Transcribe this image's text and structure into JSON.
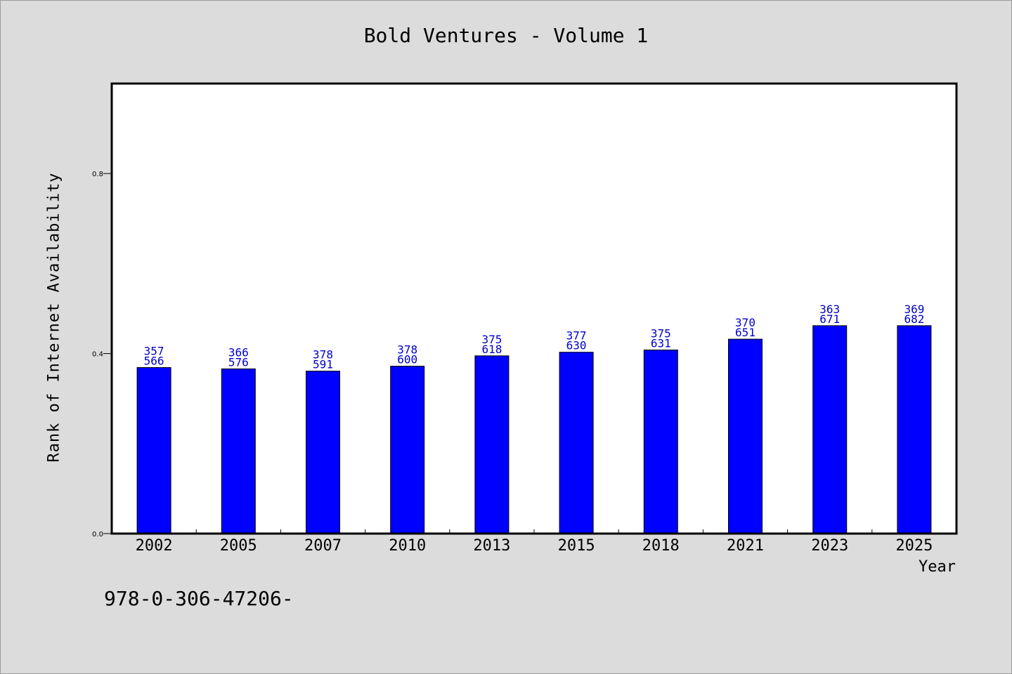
{
  "chart_data": {
    "type": "bar",
    "title": "Bold Ventures - Volume 1",
    "xlabel": "Year",
    "ylabel": "Rank of Internet Availability",
    "categories": [
      "2002",
      "2005",
      "2007",
      "2010",
      "2013",
      "2015",
      "2018",
      "2021",
      "2023",
      "2025"
    ],
    "values": [
      0.369,
      0.366,
      0.361,
      0.372,
      0.395,
      0.403,
      0.408,
      0.432,
      0.462,
      0.462
    ],
    "bar_labels": [
      [
        "357",
        "566"
      ],
      [
        "366",
        "576"
      ],
      [
        "378",
        "591"
      ],
      [
        "378",
        "600"
      ],
      [
        "375",
        "618"
      ],
      [
        "377",
        "630"
      ],
      [
        "375",
        "631"
      ],
      [
        "370",
        "651"
      ],
      [
        "363",
        "671"
      ],
      [
        "369",
        "682"
      ]
    ],
    "yticks": [
      "0.0",
      "0.4",
      "0.8"
    ],
    "ytick_values": [
      0.0,
      0.4,
      0.8
    ],
    "ylim": [
      0.0,
      1.0
    ],
    "grid": false,
    "legend": "none",
    "colors": {
      "bar": "#0000ff",
      "bar_label": "#0000cc",
      "background": "#dcdcdc",
      "plot_bg": "#ffffff"
    }
  },
  "footer": {
    "isbn": "978-0-306-47206-"
  }
}
